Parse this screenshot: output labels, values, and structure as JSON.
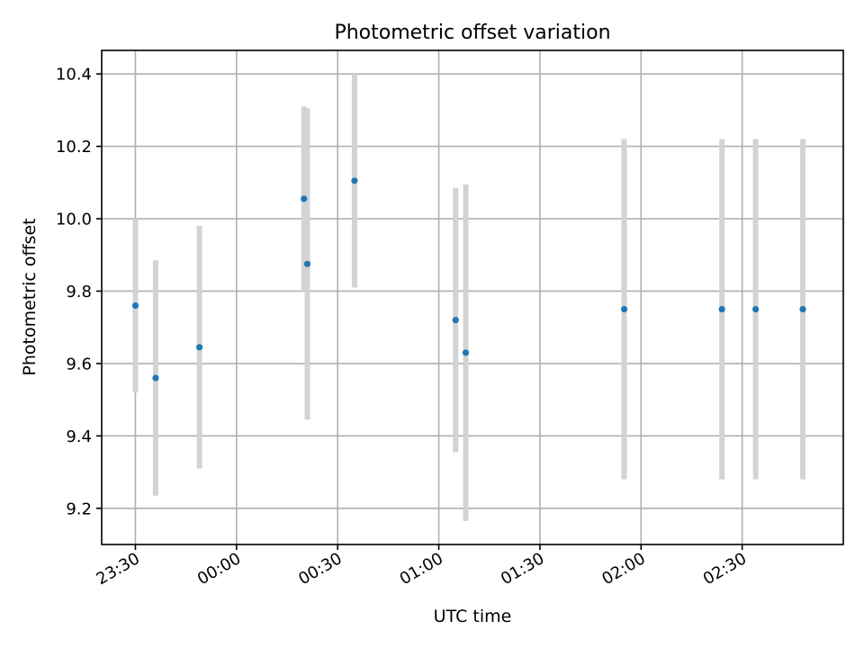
{
  "chart_data": {
    "type": "scatter",
    "title": "Photometric offset variation",
    "xlabel": "UTC time",
    "ylabel": "Photometric offset",
    "x_axis": {
      "kind": "time",
      "range": [
        "23:20",
        "03:00"
      ],
      "ticks": [
        "23:30",
        "00:00",
        "00:30",
        "01:00",
        "01:30",
        "02:00",
        "02:30"
      ]
    },
    "y_axis": {
      "range": [
        9.1,
        10.465
      ],
      "ticks": [
        9.2,
        9.4,
        9.6,
        9.8,
        10.0,
        10.2,
        10.4
      ]
    },
    "grid": true,
    "colors": {
      "point": "#1f77b4",
      "error_bar": "#d3d3d3"
    },
    "points": [
      {
        "time": "23:30",
        "y": 9.76,
        "y_low": 9.52,
        "y_high": 10.0
      },
      {
        "time": "23:36",
        "y": 9.56,
        "y_low": 9.235,
        "y_high": 9.885
      },
      {
        "time": "23:49",
        "y": 9.645,
        "y_low": 9.31,
        "y_high": 9.98
      },
      {
        "time": "00:20",
        "y": 10.055,
        "y_low": 9.8,
        "y_high": 10.31
      },
      {
        "time": "00:21",
        "y": 9.875,
        "y_low": 9.445,
        "y_high": 10.305
      },
      {
        "time": "00:35",
        "y": 10.105,
        "y_low": 9.81,
        "y_high": 10.4
      },
      {
        "time": "01:05",
        "y": 9.72,
        "y_low": 9.355,
        "y_high": 10.085
      },
      {
        "time": "01:08",
        "y": 9.63,
        "y_low": 9.165,
        "y_high": 10.095
      },
      {
        "time": "01:55",
        "y": 9.75,
        "y_low": 9.28,
        "y_high": 10.22
      },
      {
        "time": "02:24",
        "y": 9.75,
        "y_low": 9.28,
        "y_high": 10.22
      },
      {
        "time": "02:34",
        "y": 9.75,
        "y_low": 9.28,
        "y_high": 10.22
      },
      {
        "time": "02:48",
        "y": 9.75,
        "y_low": 9.28,
        "y_high": 10.22
      }
    ]
  }
}
